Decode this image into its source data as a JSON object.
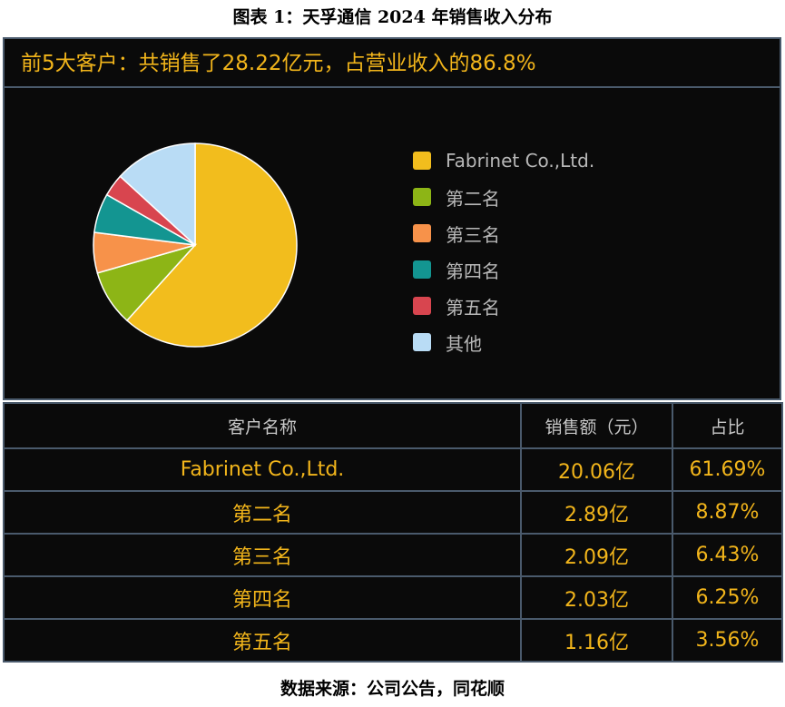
{
  "figure_title": "图表 1：天孚通信 2024 年销售收入分布",
  "source": "数据来源：公司公告，同花顺",
  "chart_data": {
    "type": "pie",
    "title": "前5大客户：共销售了28.22亿元，占营业收入的86.8%",
    "legend_position": "right",
    "slices": [
      {
        "label": "Fabrinet Co.,Ltd.",
        "value": 61.69,
        "color": "#f2bd1d"
      },
      {
        "label": "第二名",
        "value": 8.87,
        "color": "#8db516"
      },
      {
        "label": "第三名",
        "value": 6.43,
        "color": "#f7924a"
      },
      {
        "label": "第四名",
        "value": 6.25,
        "color": "#139591"
      },
      {
        "label": "第五名",
        "value": 3.56,
        "color": "#d8454f"
      },
      {
        "label": "其他",
        "value": 13.2,
        "color": "#b9dcf5"
      }
    ]
  },
  "table": {
    "headers": [
      "客户名称",
      "销售额（元）",
      "占比"
    ],
    "rows": [
      [
        "Fabrinet Co.,Ltd.",
        "20.06亿",
        "61.69%"
      ],
      [
        "第二名",
        "2.89亿",
        "8.87%"
      ],
      [
        "第三名",
        "2.09亿",
        "6.43%"
      ],
      [
        "第四名",
        "2.03亿",
        "6.25%"
      ],
      [
        "第五名",
        "1.16亿",
        "3.56%"
      ]
    ]
  }
}
